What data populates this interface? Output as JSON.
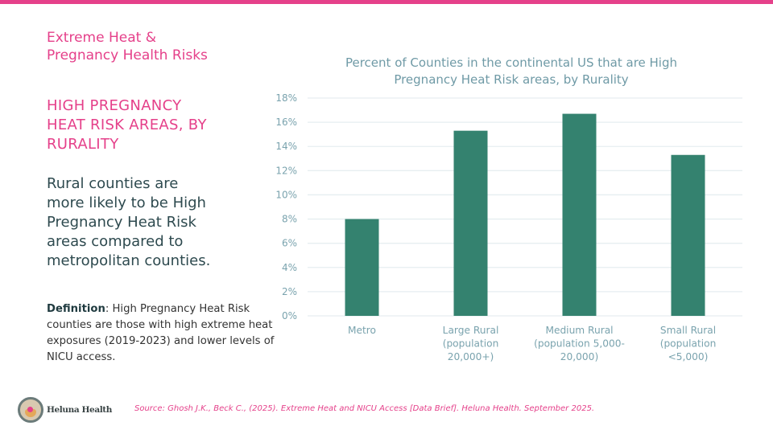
{
  "header": {
    "kicker_line1": "Extreme Heat &",
    "kicker_line2": "Pregnancy Health Risks",
    "accent_color": "#e5408a"
  },
  "left_panel": {
    "section_title_lines": [
      "HIGH PREGNANCY",
      "HEAT RISK AREAS, BY",
      "RURALITY"
    ],
    "takeaway_lines": [
      "Rural counties are",
      "more likely to be High",
      "Pregnancy Heat Risk",
      "areas compared to",
      "metropolitan counties."
    ],
    "definition_label": "Definition",
    "definition_text": ": High Pregnancy Heat Risk counties are those with high extreme heat exposures (2019-2023) and lower levels of NICU access."
  },
  "footer": {
    "logo_text": "Heluna Health",
    "source": "Source: Ghosh J.K., Beck C., (2025). Extreme Heat and NICU Access [Data Brief]. Heluna Health. September 2025."
  },
  "chart_data": {
    "type": "bar",
    "title_lines": [
      "Percent of Counties in the continental US that are High",
      "Pregnancy Heat Risk areas, by Rurality"
    ],
    "categories": [
      "Metro",
      "Large Rural (population 20,000+)",
      "Medium Rural (population 5,000-20,000)",
      "Small Rural (population <5,000)"
    ],
    "category_label_lines": [
      [
        "Metro"
      ],
      [
        "Large Rural",
        "(population",
        "20,000+)"
      ],
      [
        "Medium Rural",
        "(population 5,000-",
        "20,000)"
      ],
      [
        "Small Rural",
        "(population",
        "<5,000)"
      ]
    ],
    "values": [
      8.0,
      15.3,
      16.7,
      13.3
    ],
    "unit": "%",
    "xlabel": "",
    "ylabel": "",
    "ylim": [
      0,
      18
    ],
    "yticks": [
      0,
      2,
      4,
      6,
      8,
      10,
      12,
      14,
      16,
      18
    ],
    "ytick_labels": [
      "0%",
      "2%",
      "4%",
      "6%",
      "8%",
      "10%",
      "12%",
      "14%",
      "16%",
      "18%"
    ],
    "grid": true,
    "legend": "none",
    "bar_color": "#34826f",
    "grid_color": "#e6eef0"
  }
}
